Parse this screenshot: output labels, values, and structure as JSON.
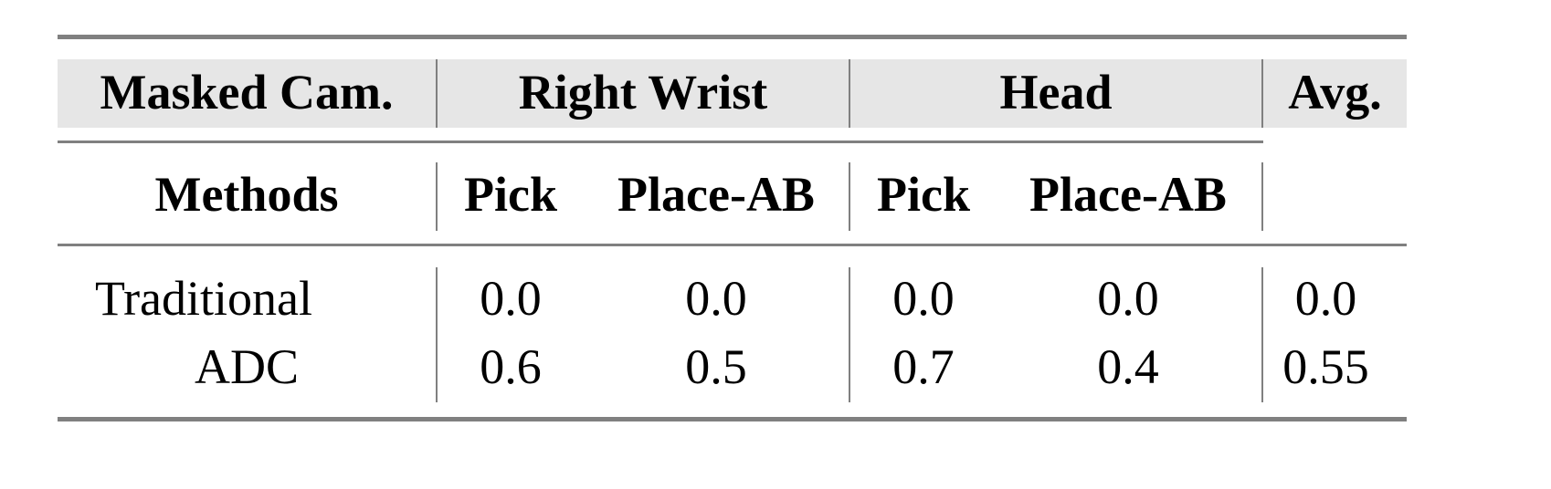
{
  "header": {
    "masked_cam": "Masked Cam.",
    "groups": [
      "Right Wrist",
      "Head"
    ],
    "avg": "Avg.",
    "methods": "Methods",
    "subcols": [
      "Pick",
      "Place-AB",
      "Pick",
      "Place-AB"
    ]
  },
  "rows": [
    {
      "method": "Traditional",
      "values": [
        "0.0",
        "0.0",
        "0.0",
        "0.0"
      ],
      "avg": "0.0"
    },
    {
      "method": "ADC",
      "values": [
        "0.6",
        "0.5",
        "0.7",
        "0.4"
      ],
      "avg": "0.55"
    }
  ],
  "colors": {
    "rule": "#808080",
    "header_bg": "#e6e6e6"
  }
}
